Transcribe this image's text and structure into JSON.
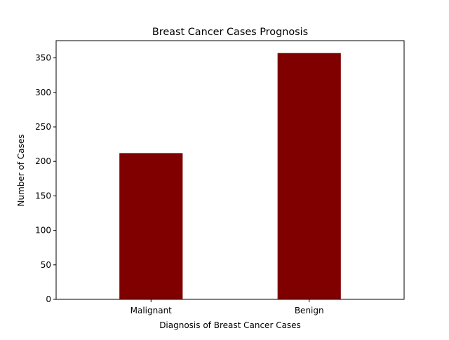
{
  "chart_data": {
    "type": "bar",
    "title": "Breast Cancer Cases Prognosis",
    "xlabel": "Diagnosis of Breast Cancer Cases",
    "ylabel": "Number of Cases",
    "categories": [
      "Malignant",
      "Benign"
    ],
    "values": [
      212,
      357
    ],
    "ylim": [
      0,
      375
    ],
    "yticks": [
      0,
      50,
      100,
      150,
      200,
      250,
      300,
      350
    ],
    "bar_color": "#800000",
    "grid": false,
    "legend": "none"
  }
}
